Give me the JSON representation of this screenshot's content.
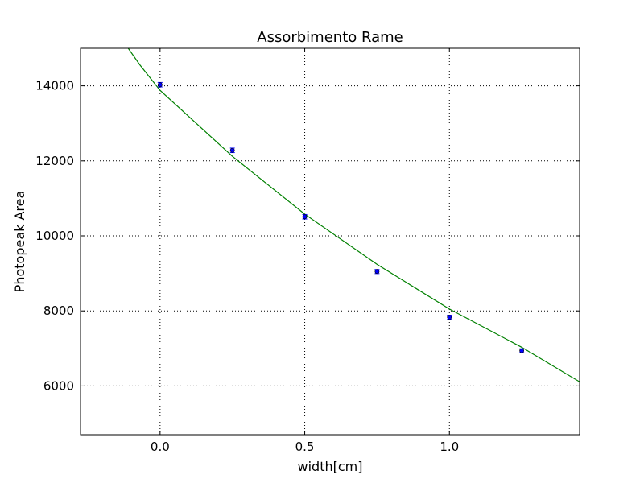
{
  "chart_data": {
    "type": "scatter",
    "title": "Assorbimento Rame",
    "xlabel": "width[cm]",
    "ylabel": "Photopeak Area",
    "xlim": [
      -0.275,
      1.45
    ],
    "ylim": [
      4700,
      15000
    ],
    "x_ticks": [
      0.0,
      0.5,
      1.0
    ],
    "x_tick_labels": [
      "0.0",
      "0.5",
      "1.0"
    ],
    "y_ticks": [
      6000,
      8000,
      10000,
      12000,
      14000
    ],
    "y_tick_labels": [
      "6000",
      "8000",
      "10000",
      "12000",
      "14000"
    ],
    "grid": true,
    "series": [
      {
        "kind": "errorbar",
        "color": "#0000ff",
        "x": [
          0.0,
          0.25,
          0.5,
          0.75,
          1.0,
          1.25
        ],
        "y": [
          14030,
          12280,
          10510,
          9050,
          7830,
          6940
        ],
        "yerr": [
          60,
          60,
          60,
          55,
          55,
          50
        ]
      },
      {
        "kind": "fit-line",
        "color": "#008000",
        "x": [
          -0.11,
          -0.07,
          0.0,
          0.25,
          0.5,
          0.75,
          1.0,
          1.25,
          1.45
        ],
        "y": [
          15000,
          14560,
          13880,
          12120,
          10580,
          9240,
          8050,
          7030,
          6110
        ]
      }
    ]
  }
}
